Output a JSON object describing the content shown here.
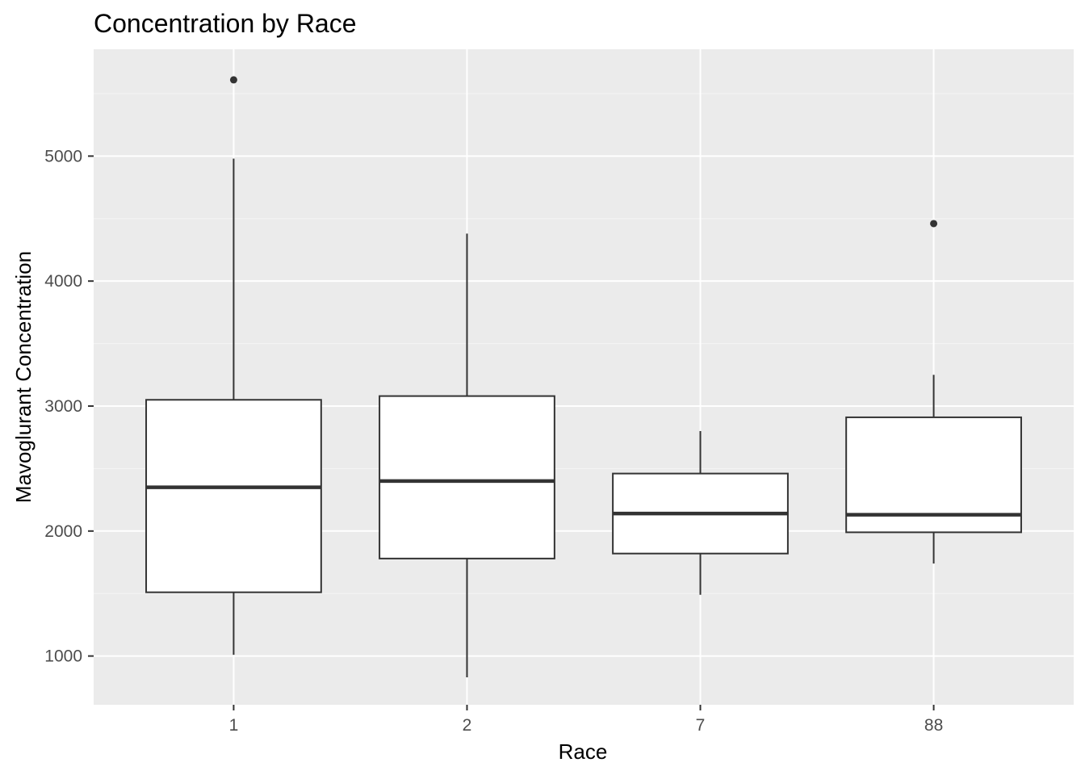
{
  "chart_data": {
    "type": "boxplot",
    "title": "Concentration by Race",
    "xlabel": "Race",
    "ylabel": "Mavoglurant Concentration",
    "categories": [
      "1",
      "2",
      "7",
      "88"
    ],
    "y_ticks": [
      1000,
      2000,
      3000,
      4000,
      5000
    ],
    "y_tick_labels": [
      "1000",
      "2000",
      "3000",
      "4000",
      "5000"
    ],
    "ylim": [
      610,
      5855
    ],
    "grid": true,
    "legend": "none",
    "boxes": [
      {
        "category": "1",
        "whisker_low": 1010,
        "q1": 1510,
        "median": 2350,
        "q3": 3050,
        "whisker_high": 4980,
        "outliers": [
          5610
        ]
      },
      {
        "category": "2",
        "whisker_low": 830,
        "q1": 1780,
        "median": 2400,
        "q3": 3080,
        "whisker_high": 4380,
        "outliers": []
      },
      {
        "category": "7",
        "whisker_low": 1490,
        "q1": 1820,
        "median": 2140,
        "q3": 2460,
        "whisker_high": 2800,
        "outliers": []
      },
      {
        "category": "88",
        "whisker_low": 1740,
        "q1": 1990,
        "median": 2130,
        "q3": 2910,
        "whisker_high": 3250,
        "outliers": [
          4460
        ]
      }
    ],
    "colors": {
      "panel_background": "#ebebeb",
      "grid_major": "#ffffff",
      "grid_minor": "#f5f5f5",
      "box_fill": "#ffffff",
      "box_line": "#333333",
      "tick_text": "#4d4d4d",
      "tick_mark": "#333333",
      "text": "#000000"
    }
  }
}
